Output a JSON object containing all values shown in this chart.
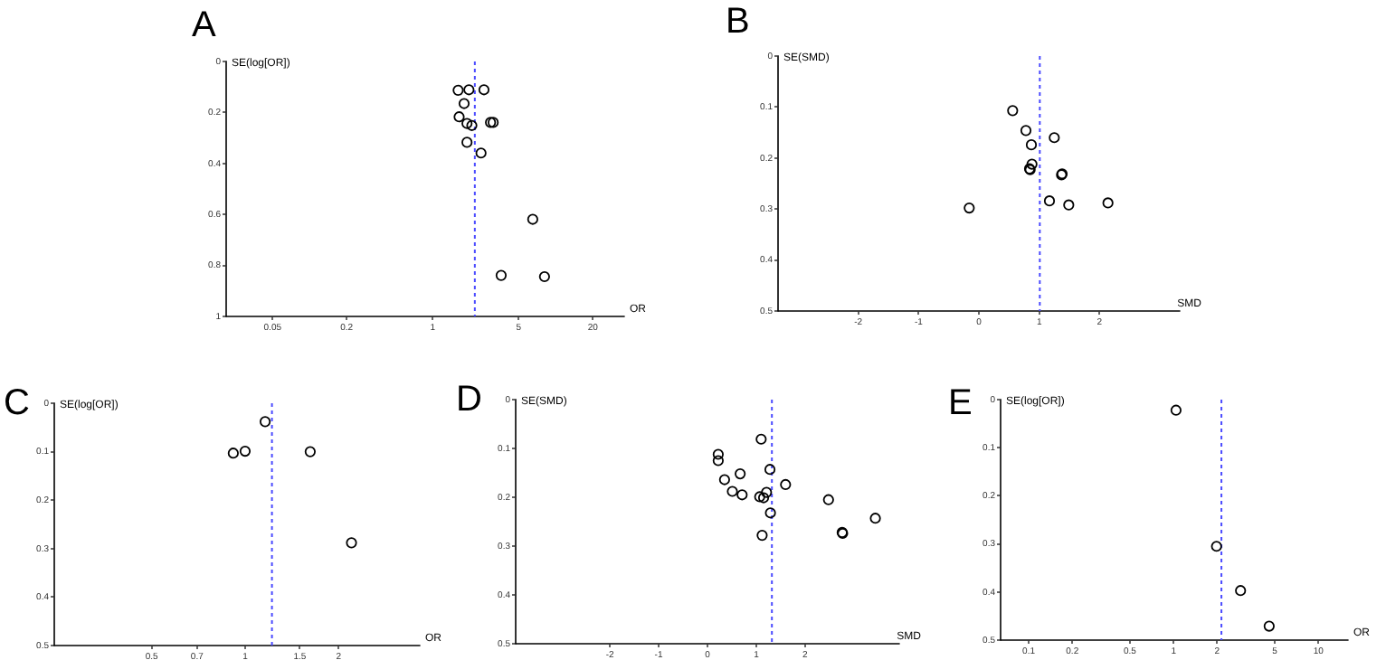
{
  "chart_data": [
    {
      "type": "scatter",
      "title": "A",
      "xlabel": "OR",
      "ylabel": "SE(log[OR])",
      "log": "x",
      "xlim": [
        0.021,
        36
      ],
      "xticks": [
        0.05,
        0.2,
        1,
        5,
        20
      ],
      "ylim": [
        1,
        0
      ],
      "yticks": [
        0,
        0.2,
        0.4,
        0.6,
        0.8,
        1
      ],
      "grid": false,
      "marker": "circle",
      "x": [
        1.61,
        1.97,
        2.61,
        1.8,
        1.64,
        1.9,
        2.08,
        2.95,
        3.1,
        1.9,
        2.47,
        6.5,
        3.6,
        8.1
      ],
      "series": [
        {
          "color": "#000000",
          "values": [
            0.113,
            0.111,
            0.111,
            0.165,
            0.217,
            0.243,
            0.251,
            0.239,
            0.239,
            0.317,
            0.359,
            0.619,
            0.839,
            0.844
          ]
        }
      ],
      "ref_lines": [
        {
          "axis": "x",
          "value": 2.2,
          "color": "#4a4aff",
          "line_style": "dotted"
        }
      ]
    },
    {
      "type": "scatter",
      "title": "B",
      "xlabel": "SMD",
      "ylabel": "SE(SMD)",
      "xlim": [
        -3.33,
        3.33
      ],
      "xticks": [
        -2,
        -1,
        0,
        1,
        2
      ],
      "ylim": [
        0.5,
        0
      ],
      "yticks": [
        0,
        0.1,
        0.2,
        0.3,
        0.4,
        0.5
      ],
      "grid": false,
      "marker": "circle",
      "x": [
        0.56,
        0.78,
        0.87,
        1.25,
        0.88,
        0.84,
        0.85,
        1.37,
        1.38,
        1.17,
        1.49,
        2.14,
        -0.16
      ],
      "series": [
        {
          "color": "#000000",
          "values": [
            0.107,
            0.146,
            0.174,
            0.16,
            0.212,
            0.221,
            0.223,
            0.233,
            0.231,
            0.284,
            0.292,
            0.288,
            0.298
          ]
        }
      ],
      "ref_lines": [
        {
          "axis": "x",
          "value": 1.01,
          "color": "#4a4aff",
          "line_style": "dotted"
        }
      ]
    },
    {
      "type": "scatter",
      "title": "C",
      "xlabel": "OR",
      "ylabel": "SE(log[OR])",
      "log": "x",
      "xlim": [
        0.243,
        3.65
      ],
      "xticks": [
        0.5,
        0.7,
        1,
        1.5,
        2
      ],
      "ylim": [
        0.5,
        0
      ],
      "yticks": [
        0,
        0.1,
        0.2,
        0.3,
        0.4,
        0.5
      ],
      "grid": false,
      "marker": "circle",
      "x": [
        0.916,
        1.0,
        1.16,
        1.62,
        2.2
      ],
      "series": [
        {
          "color": "#000000",
          "values": [
            0.103,
            0.099,
            0.038,
            0.1,
            0.288
          ]
        }
      ],
      "ref_lines": [
        {
          "axis": "x",
          "value": 1.22,
          "color": "#4a4aff",
          "line_style": "dotted"
        }
      ]
    },
    {
      "type": "scatter",
      "title": "D",
      "xlabel": "SMD",
      "ylabel": "SE(SMD)",
      "xlim": [
        -3.93,
        3.93
      ],
      "xticks": [
        -2,
        -1,
        0,
        1,
        2
      ],
      "ylim": [
        0.5,
        0
      ],
      "yticks": [
        0,
        0.1,
        0.2,
        0.3,
        0.4,
        0.5
      ],
      "grid": false,
      "marker": "circle",
      "x": [
        1.1,
        0.22,
        0.22,
        1.28,
        0.67,
        0.35,
        1.6,
        0.51,
        0.71,
        1.21,
        1.07,
        1.15,
        1.29,
        1.12,
        2.48,
        2.76,
        2.77,
        3.44
      ],
      "series": [
        {
          "color": "#000000",
          "values": [
            0.081,
            0.112,
            0.125,
            0.143,
            0.152,
            0.164,
            0.174,
            0.188,
            0.195,
            0.19,
            0.199,
            0.201,
            0.232,
            0.278,
            0.205,
            0.272,
            0.274,
            0.243
          ]
        }
      ],
      "ref_lines": [
        {
          "axis": "x",
          "value": 1.32,
          "color": "#4a4aff",
          "line_style": "dotted"
        }
      ]
    },
    {
      "type": "scatter",
      "title": "E",
      "xlabel": "OR",
      "ylabel": "SE(log[OR])",
      "log": "x",
      "xlim": [
        0.064,
        16
      ],
      "xticks": [
        0.1,
        0.2,
        0.5,
        1,
        2,
        5,
        10
      ],
      "ylim": [
        0.5,
        0
      ],
      "yticks": [
        0,
        0.1,
        0.2,
        0.3,
        0.4,
        0.5
      ],
      "grid": false,
      "marker": "circle",
      "x": [
        1.04,
        1.98,
        2.9,
        4.57
      ],
      "series": [
        {
          "color": "#000000",
          "values": [
            0.022,
            0.305,
            0.397,
            0.471
          ]
        }
      ],
      "ref_lines": [
        {
          "axis": "x",
          "value": 2.14,
          "color": "#4a4aff",
          "line_style": "dotted"
        }
      ]
    }
  ]
}
